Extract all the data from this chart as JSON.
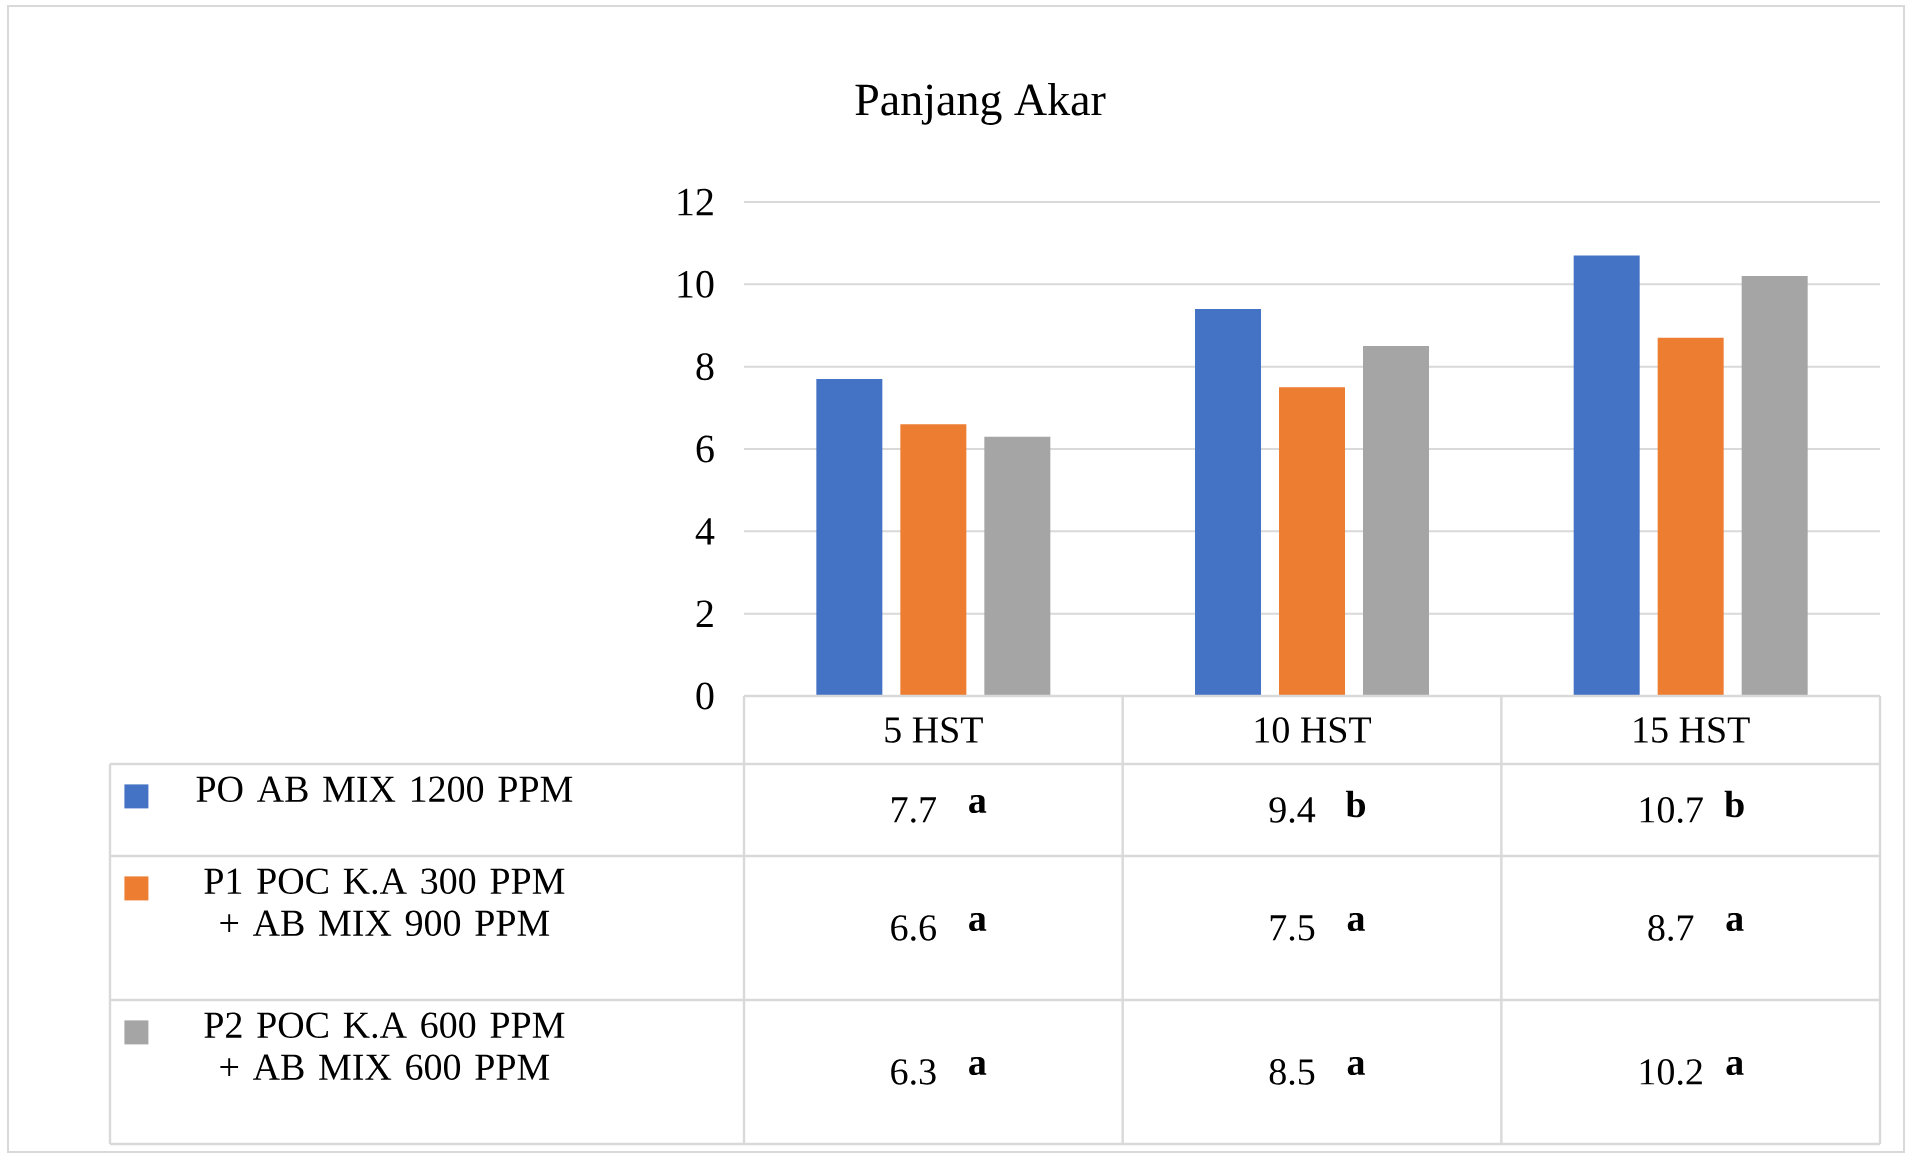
{
  "chart_data": {
    "type": "bar",
    "title": "Panjang Akar",
    "categories": [
      "5 HST",
      "10 HST",
      "15 HST"
    ],
    "series": [
      {
        "name": "PO AB MIX 1200 PPM",
        "color": "#4472c4",
        "values": [
          7.7,
          9.4,
          10.7
        ]
      },
      {
        "name": "P1 POC K.A 300 PPM + AB MIX 900 PPM",
        "color": "#ed7d31",
        "values": [
          6.6,
          7.5,
          8.7
        ]
      },
      {
        "name": "P2 POC K.A 600 PPM + AB MIX 600 PPM",
        "color": "#a5a5a5",
        "values": [
          6.3,
          8.5,
          10.2
        ]
      }
    ],
    "ylim": [
      0,
      12
    ],
    "yticks": [
      0,
      2,
      4,
      6,
      8,
      10,
      12
    ],
    "grid": "y",
    "data_labels": true,
    "legend": "bottom left",
    "annotations": [
      "a",
      "b",
      "b",
      "a",
      "a",
      "a",
      "a",
      "a",
      "a"
    ]
  }
}
